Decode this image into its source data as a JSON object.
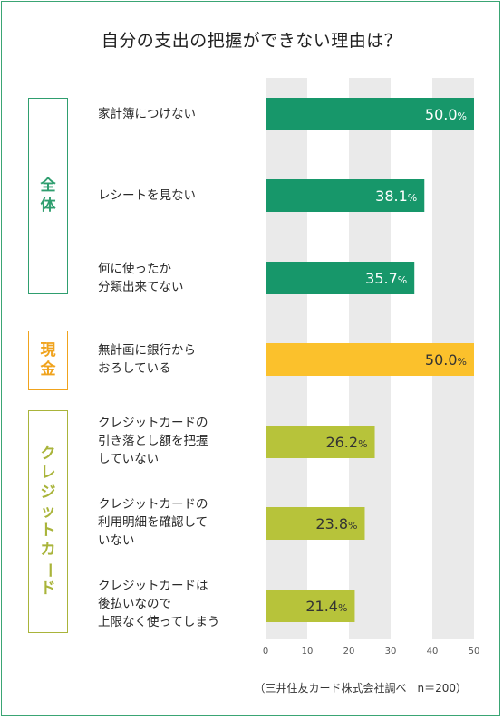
{
  "title": "自分の支出の把握ができない理由は？",
  "footnote": "（三井住友カード株式会社調べ　n＝200）",
  "colors": {
    "border": "#3aa574",
    "gridband": "#eaeaea",
    "axis": "#d9d9d9"
  },
  "groups": [
    {
      "label": "全体",
      "color": "#2f9e6f"
    },
    {
      "label": "現金",
      "color": "#f0a31d"
    },
    {
      "label": "クレジットカード",
      "color": "#a9b43a"
    }
  ],
  "chart_data": {
    "type": "bar",
    "orientation": "horizontal",
    "categories": [
      "家計簿につけない",
      "レシートを見ない",
      "何に使ったか\n分類出来てない",
      "無計画に銀行から\nおろしている",
      "クレジットカードの\n引き落とし額を把握\nしていない",
      "クレジットカードの\n利用明細を確認して\nいない",
      "クレジットカードは\n後払いなので\n上限なく使ってしまう"
    ],
    "values": [
      50.0,
      38.1,
      35.7,
      50.0,
      26.2,
      23.8,
      21.4
    ],
    "value_labels": [
      "50.0",
      "38.1",
      "35.7",
      "50.0",
      "26.2",
      "23.8",
      "21.4"
    ],
    "unit": "%",
    "group_index": [
      0,
      0,
      0,
      1,
      2,
      2,
      2
    ],
    "bar_colors": [
      "#17976a",
      "#17976a",
      "#17976a",
      "#fbc12c",
      "#b7c33a",
      "#b7c33a",
      "#b7c33a"
    ],
    "xlim": [
      0,
      50
    ],
    "xticks": [
      "0",
      "10",
      "20",
      "30",
      "40",
      "50"
    ],
    "grid": "alternating bands"
  }
}
